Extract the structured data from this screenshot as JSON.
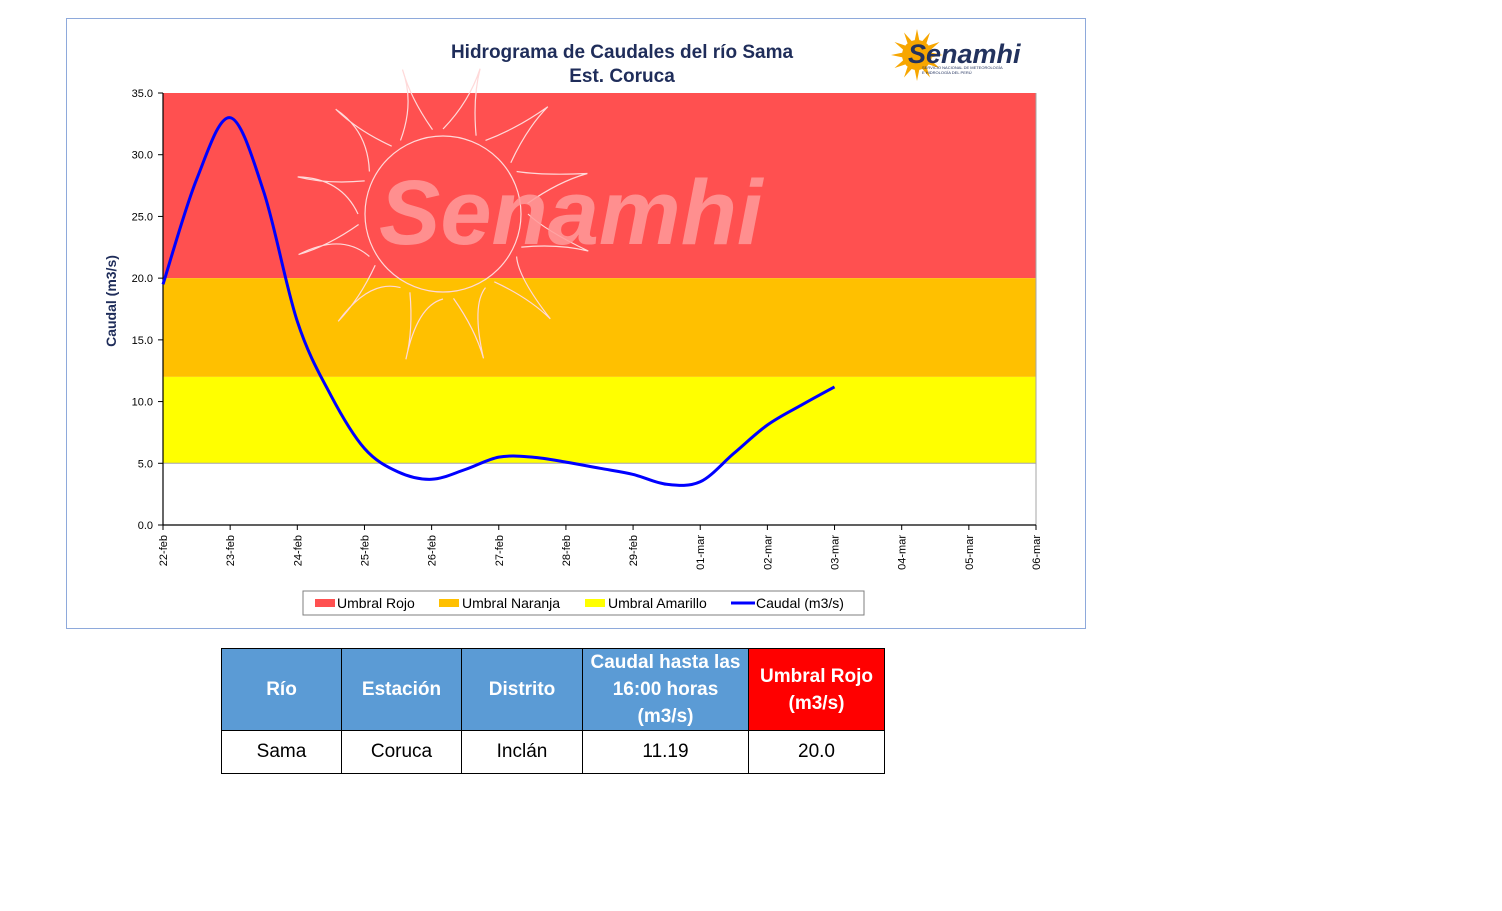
{
  "colors": {
    "umbral_rojo": "#ff5050",
    "umbral_naranja": "#ffc000",
    "umbral_amarillo": "#ffff00",
    "caudal_line": "#0000ff",
    "header_blue": "#5b9bd5",
    "header_red": "#ff0000"
  },
  "logo": {
    "text": "Senamhi",
    "subtitle_1": "SERVICIO NACIONAL DE METEOROLOGÍA",
    "subtitle_2": "E HIDROLOGÍA DEL PERÚ",
    "icon": "sun-icon"
  },
  "watermark": {
    "text": "Senamhi",
    "icon": "sun-icon"
  },
  "chart_data": {
    "type": "line",
    "title_line1": "Hidrograma de Caudales del río Sama",
    "title_line2": "Est. Coruca",
    "ylabel": "Caudal (m3/s)",
    "xlabel": "",
    "ylim": [
      0,
      35
    ],
    "yticks": [
      "0.0",
      "5.0",
      "10.0",
      "15.0",
      "20.0",
      "25.0",
      "30.0",
      "35.0"
    ],
    "categories": [
      "22-feb",
      "23-feb",
      "24-feb",
      "25-feb",
      "26-feb",
      "27-feb",
      "28-feb",
      "29-feb",
      "01-mar",
      "02-mar",
      "03-mar",
      "04-mar",
      "05-mar",
      "06-mar"
    ],
    "bands": [
      {
        "name": "Umbral Rojo",
        "from": 20,
        "to": 35,
        "color": "#ff5050"
      },
      {
        "name": "Umbral Naranja",
        "from": 12,
        "to": 20,
        "color": "#ffc000"
      },
      {
        "name": "Umbral Amarillo",
        "from": 5,
        "to": 12,
        "color": "#ffff00"
      }
    ],
    "series": [
      {
        "name": "Caudal (m3/s)",
        "color": "#0000ff",
        "x": [
          0,
          0.5,
          1,
          1.5,
          2,
          2.5,
          3,
          3.5,
          4,
          4.5,
          5,
          5.5,
          6,
          6.5,
          7,
          7.5,
          8,
          8.5,
          9,
          9.5,
          10
        ],
        "y": [
          19.5,
          28,
          33,
          27,
          16.5,
          10.5,
          6.2,
          4.3,
          3.7,
          4.5,
          5.5,
          5.5,
          5.1,
          4.6,
          4.1,
          3.3,
          3.5,
          5.8,
          8.1,
          9.7,
          11.19
        ]
      }
    ],
    "legend": [
      "Umbral Rojo",
      "Umbral Naranja",
      "Umbral Amarillo",
      "Caudal (m3/s)"
    ],
    "legend_position": "bottom",
    "grid": false
  },
  "table": {
    "headers": [
      "Río",
      "Estación",
      "Distrito",
      "Caudal hasta las 16:00 horas (m3/s)",
      "Umbral Rojo (m3/s)"
    ],
    "row": [
      "Sama",
      "Coruca",
      "Inclán",
      "11.19",
      "20.0"
    ]
  }
}
